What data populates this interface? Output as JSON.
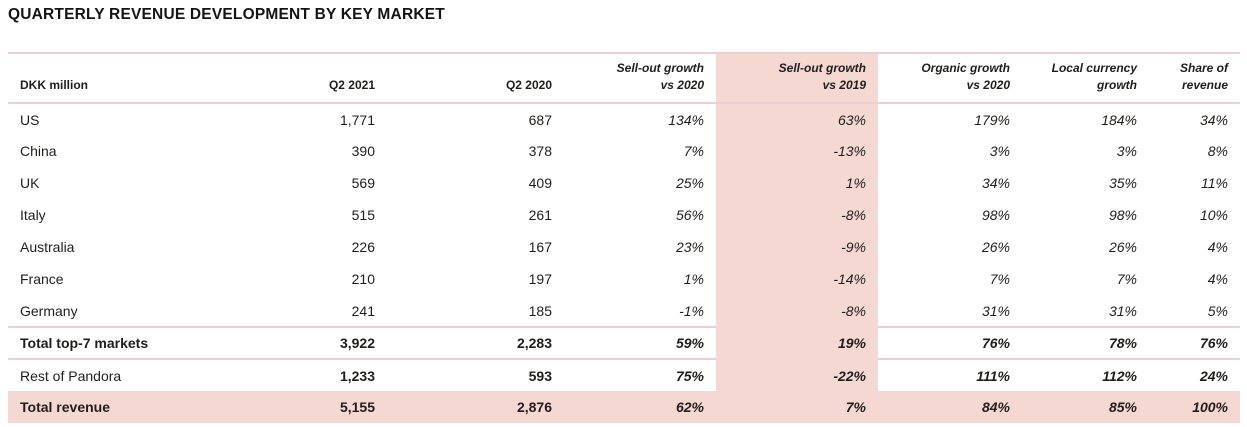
{
  "title": "QUARTERLY REVENUE DEVELOPMENT BY KEY MARKET",
  "table": {
    "unit_label": "DKK million",
    "columns": [
      {
        "key": "q2-2021",
        "line1": "",
        "line2": "Q2 2021",
        "italic": false,
        "highlight": false
      },
      {
        "key": "q2-2020",
        "line1": "",
        "line2": "Q2 2020",
        "italic": false,
        "highlight": false
      },
      {
        "key": "sellout-growth-vs-2020",
        "line1": "Sell-out growth",
        "line2": "vs 2020",
        "italic": true,
        "highlight": false
      },
      {
        "key": "sellout-growth-vs-2019",
        "line1": "Sell-out growth",
        "line2": "vs 2019",
        "italic": true,
        "highlight": true
      },
      {
        "key": "organic-growth-vs-2020",
        "line1": "Organic growth",
        "line2": "vs 2020",
        "italic": true,
        "highlight": false
      },
      {
        "key": "local-currency-growth",
        "line1": "Local currency",
        "line2": "growth",
        "italic": true,
        "highlight": false
      },
      {
        "key": "share-of-revenue",
        "line1": "Share of",
        "line2": "revenue",
        "italic": true,
        "highlight": false
      }
    ],
    "rows": [
      {
        "label": "US",
        "style": "data",
        "values": [
          "1,771",
          "687",
          "134%",
          "63%",
          "179%",
          "184%",
          "34%"
        ]
      },
      {
        "label": "China",
        "style": "data",
        "values": [
          "390",
          "378",
          "7%",
          "-13%",
          "3%",
          "3%",
          "8%"
        ]
      },
      {
        "label": "UK",
        "style": "data",
        "values": [
          "569",
          "409",
          "25%",
          "1%",
          "34%",
          "35%",
          "11%"
        ]
      },
      {
        "label": "Italy",
        "style": "data",
        "values": [
          "515",
          "261",
          "56%",
          "-8%",
          "98%",
          "98%",
          "10%"
        ]
      },
      {
        "label": "Australia",
        "style": "data",
        "values": [
          "226",
          "167",
          "23%",
          "-9%",
          "26%",
          "26%",
          "4%"
        ]
      },
      {
        "label": "France",
        "style": "data",
        "values": [
          "210",
          "197",
          "1%",
          "-14%",
          "7%",
          "7%",
          "4%"
        ]
      },
      {
        "label": "Germany",
        "style": "data",
        "values": [
          "241",
          "185",
          "-1%",
          "-8%",
          "31%",
          "31%",
          "5%"
        ]
      },
      {
        "label": "Total top-7 markets",
        "style": "subtotal",
        "values": [
          "3,922",
          "2,283",
          "59%",
          "19%",
          "76%",
          "78%",
          "76%"
        ]
      },
      {
        "label": "Rest of Pandora",
        "style": "rest",
        "values": [
          "1,233",
          "593",
          "75%",
          "-22%",
          "111%",
          "112%",
          "24%"
        ]
      },
      {
        "label": "Total revenue",
        "style": "total",
        "values": [
          "5,155",
          "2,876",
          "62%",
          "7%",
          "84%",
          "85%",
          "100%"
        ]
      }
    ]
  },
  "colors": {
    "highlight_pink": "#f6d8d3",
    "rule_pink": "#eccfd1",
    "text": "#1e1e1c"
  }
}
